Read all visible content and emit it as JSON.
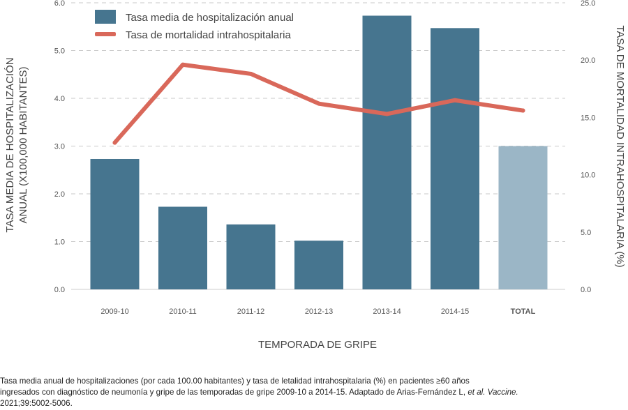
{
  "chart_data": {
    "type": "bar",
    "categories": [
      "2009-10",
      "2010-11",
      "2011-12",
      "2012-13",
      "2013-14",
      "2014-15",
      "TOTAL"
    ],
    "xlabel": "TEMPORADA DE GRIPE",
    "ylabel_left_line1": "TASA MEDIA DE HOSPITALIZACIÓN",
    "ylabel_left_line2": "ANUAL (X100,000 HABITANTES)",
    "ylabel_right": "TASA DE MORTALIDAD INTRAHOSPITALARIA (%)",
    "ylim_left": [
      0,
      6
    ],
    "ylim_right": [
      0,
      25
    ],
    "yticks_left": [
      "0.0",
      "1.0",
      "2.0",
      "3.0",
      "4.0",
      "5.0",
      "6.0"
    ],
    "yticks_right": [
      "0.0",
      "5.0",
      "10.0",
      "15.0",
      "20.0",
      "25.0"
    ],
    "grid": "horizontal dashed",
    "legend_position": "top-left",
    "series": [
      {
        "name": "Tasa media de hospitalización anual",
        "kind": "bar",
        "axis": "left",
        "color": "#46758f",
        "total_color": "#9bb6c6",
        "values": [
          2.73,
          1.73,
          1.36,
          1.02,
          5.73,
          5.47,
          3.0
        ]
      },
      {
        "name": "Tasa de mortalidad intrahospitalaria",
        "kind": "line",
        "axis": "right",
        "color": "#d9685a",
        "values": [
          12.8,
          19.6,
          18.8,
          16.2,
          15.3,
          16.5,
          15.6
        ]
      }
    ]
  },
  "caption": {
    "line1": "Tasa media anual de hospitalizaciones (por cada 100.00 habitantes) y tasa de letalidad intrahospitalaria (%) en pacientes ≥60 años",
    "line2_main": "ingresados con diagnóstico de neumonía y gripe de las temporadas de gripe 2009-10 a 2014-15. Adaptado de Arias-Fernández L, ",
    "line2_italic": "et al. Vaccine.",
    "line3": "2021;39:5002-5006."
  }
}
